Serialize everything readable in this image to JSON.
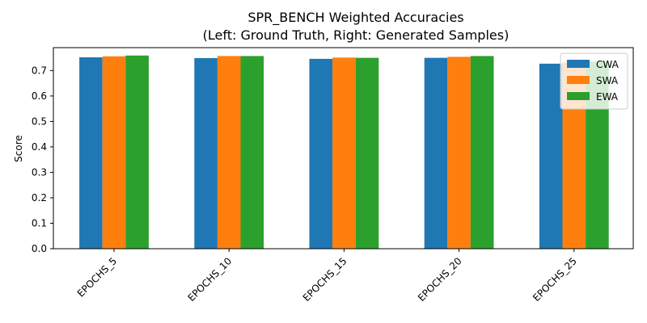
{
  "chart_data": {
    "type": "bar",
    "title": "SPR_BENCH Weighted Accuracies",
    "subtitle": "(Left: Ground Truth, Right: Generated Samples)",
    "xlabel": "",
    "ylabel": "Score",
    "categories": [
      "EPOCHS_5",
      "EPOCHS_10",
      "EPOCHS_15",
      "EPOCHS_20",
      "EPOCHS_25"
    ],
    "series": [
      {
        "name": "CWA",
        "color": "#1f77b4",
        "values": [
          0.752,
          0.749,
          0.746,
          0.75,
          0.727
        ]
      },
      {
        "name": "SWA",
        "color": "#ff7f0e",
        "values": [
          0.756,
          0.757,
          0.751,
          0.754,
          0.733
        ]
      },
      {
        "name": "EWA",
        "color": "#2ca02c",
        "values": [
          0.759,
          0.757,
          0.75,
          0.757,
          0.735
        ]
      }
    ],
    "ylim": [
      0,
      0.79
    ],
    "yticks": [
      "0.0",
      "0.1",
      "0.2",
      "0.3",
      "0.4",
      "0.5",
      "0.6",
      "0.7"
    ],
    "grid": false,
    "legend_position": "top-right"
  }
}
